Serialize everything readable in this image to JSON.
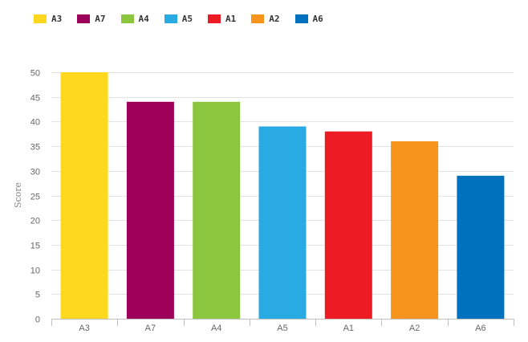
{
  "chart_data": {
    "type": "bar",
    "categories": [
      "A3",
      "A7",
      "A4",
      "A5",
      "A1",
      "A2",
      "A6"
    ],
    "values": [
      50,
      44,
      44,
      39,
      38,
      36,
      29
    ],
    "colors": [
      "#fdd81e",
      "#9c0059",
      "#8cc63f",
      "#29aae2",
      "#ed1c24",
      "#f7941d",
      "#0071bc"
    ],
    "legend": [
      "A3",
      "A7",
      "A4",
      "A5",
      "A1",
      "A2",
      "A6"
    ],
    "legend_position": "top-left",
    "title": "",
    "xlabel": "",
    "ylabel": "Score",
    "ylim": [
      0,
      50
    ],
    "yticks": [
      0,
      5,
      10,
      15,
      20,
      25,
      30,
      35,
      40,
      45,
      50
    ],
    "grid": true
  }
}
